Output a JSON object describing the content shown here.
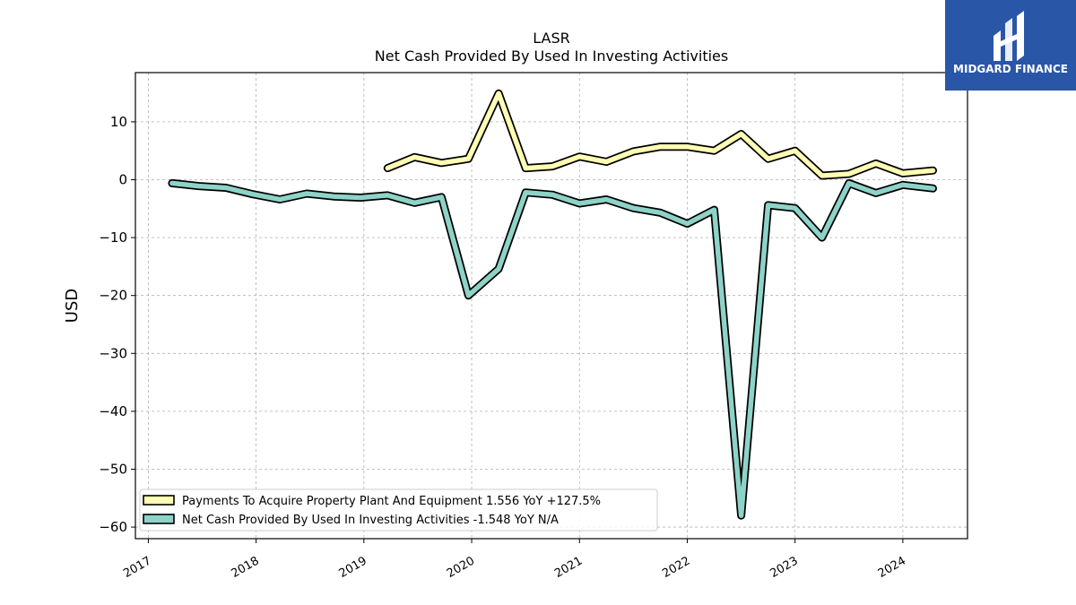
{
  "chart_data": {
    "type": "line",
    "title": "LASR",
    "subtitle": "Net Cash Provided By Used In Investing Activities",
    "ylabel": "USD",
    "xlabel": "",
    "ylim": [
      -62,
      18.5
    ],
    "xlim": [
      2016.88,
      2024.6
    ],
    "yticks": [
      10,
      0,
      -10,
      -20,
      -30,
      -40,
      -50,
      -60
    ],
    "ytick_labels": [
      "10",
      "0",
      "−10",
      "−20",
      "−30",
      "−40",
      "−50",
      "−60"
    ],
    "xticks": [
      2017,
      2018,
      2019,
      2020,
      2021,
      2022,
      2023,
      2024
    ],
    "xtick_labels": [
      "2017",
      "2018",
      "2019",
      "2020",
      "2021",
      "2022",
      "2023",
      "2024"
    ],
    "grid": true,
    "legend_position": "lower-left",
    "series": [
      {
        "name": "Payments To Acquire Property Plant And Equipment  1.556 YoY +127.5%",
        "color": "#ffffb3",
        "x": [
          2019.22,
          2019.47,
          2019.72,
          2019.97,
          2020.25,
          2020.5,
          2020.75,
          2021.0,
          2021.25,
          2021.5,
          2021.75,
          2022.0,
          2022.25,
          2022.5,
          2022.75,
          2023.0,
          2023.25,
          2023.5,
          2023.75,
          2024.0,
          2024.28
        ],
        "y": [
          2.0,
          3.9,
          2.9,
          3.6,
          14.9,
          2.0,
          2.3,
          4.0,
          3.1,
          4.9,
          5.7,
          5.7,
          5.0,
          7.9,
          3.6,
          5.0,
          0.7,
          1.0,
          2.8,
          1.1,
          1.6
        ]
      },
      {
        "name": "Net Cash Provided By Used In Investing Activities  -1.548 YoY N/A",
        "color": "#8dd3c7",
        "x": [
          2017.22,
          2017.47,
          2017.72,
          2017.97,
          2018.22,
          2018.47,
          2018.72,
          2018.97,
          2019.22,
          2019.47,
          2019.72,
          2019.97,
          2020.25,
          2020.5,
          2020.75,
          2021.0,
          2021.25,
          2021.5,
          2021.75,
          2022.0,
          2022.25,
          2022.5,
          2022.75,
          2023.0,
          2023.25,
          2023.5,
          2023.75,
          2024.0,
          2024.28
        ],
        "y": [
          -0.6,
          -1.1,
          -1.4,
          -2.5,
          -3.4,
          -2.4,
          -2.9,
          -3.1,
          -2.7,
          -4.0,
          -3.0,
          -20.0,
          -15.4,
          -2.2,
          -2.6,
          -4.1,
          -3.4,
          -4.9,
          -5.7,
          -7.6,
          -5.2,
          -58.0,
          -4.4,
          -4.9,
          -10.0,
          -0.6,
          -2.3,
          -0.9,
          -1.5
        ]
      }
    ]
  },
  "logo": {
    "text": "MIDGARD FINANCE",
    "background": "#2a56a8"
  }
}
